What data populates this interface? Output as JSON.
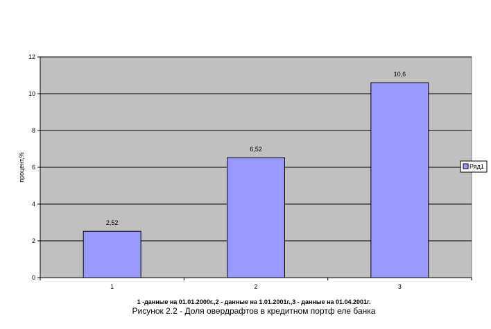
{
  "chart_data": {
    "type": "bar",
    "categories": [
      "1",
      "2",
      "3"
    ],
    "series": [
      {
        "name": "Ряд1",
        "values": [
          2.52,
          6.52,
          10.6
        ],
        "labels": [
          "2,52",
          "6,52",
          "10,6"
        ],
        "color": "#9999ff"
      }
    ],
    "ylabel": "процент,%",
    "xlabel": "1 -данные на 01.01.2000г.,2 - данные на 1.01.2001г.,3 - данные на 01.04.2001г.",
    "ylim": [
      0,
      12
    ],
    "yticks": [
      0,
      2,
      4,
      6,
      8,
      10,
      12
    ],
    "grid": true,
    "legend": "right",
    "plot_background": "#c0c0c0"
  },
  "caption": "Рисунок 2.2 - Доля овердрафтов в кредитном портф еле банка"
}
